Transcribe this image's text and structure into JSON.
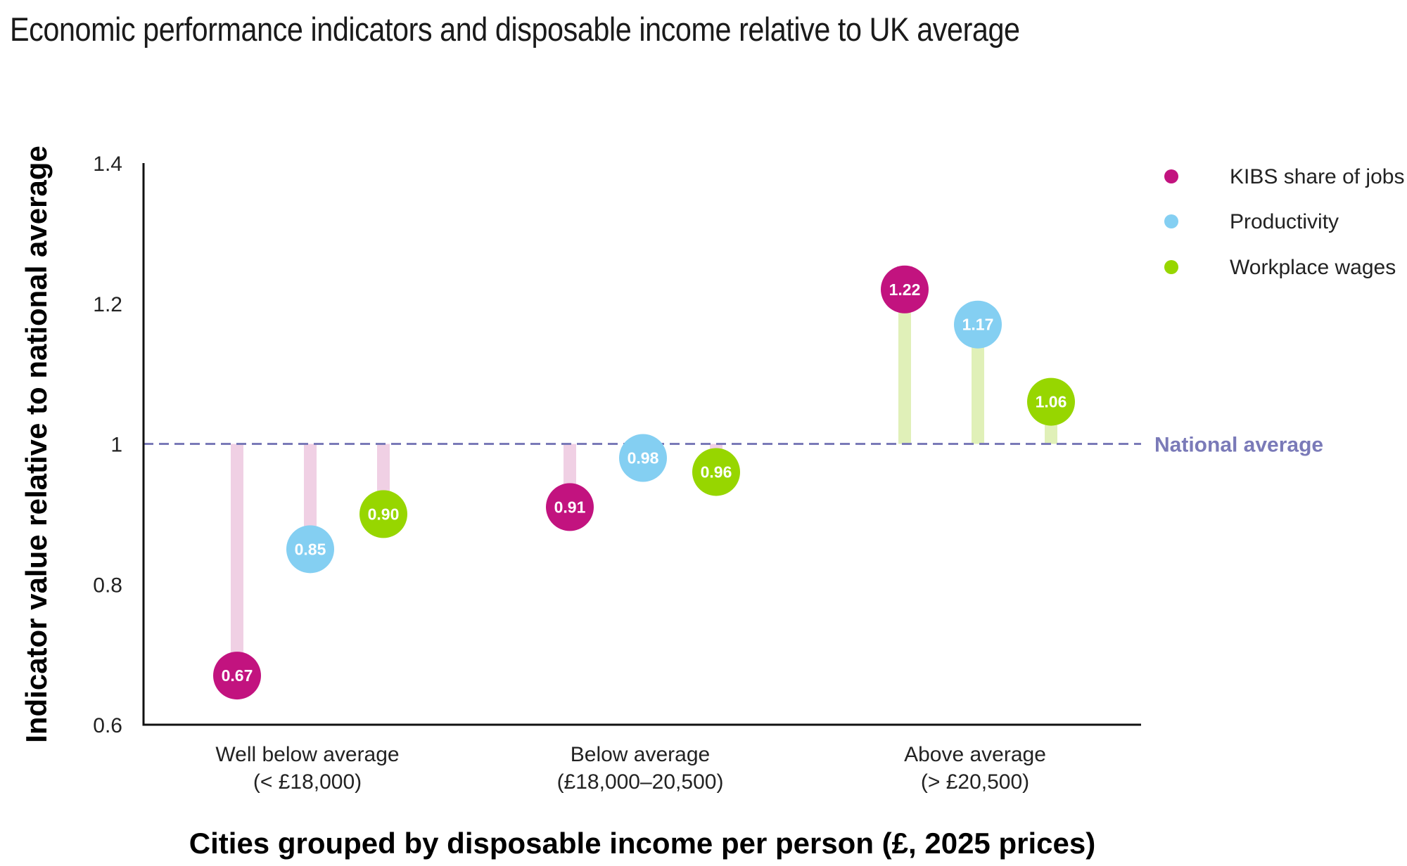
{
  "title": "Economic performance indicators and disposable income relative to UK average",
  "chart_data": {
    "type": "lollipop",
    "title": "Economic performance indicators and disposable income relative to UK average",
    "xlabel": "Cities grouped by disposable income per person (£, 2025 prices)",
    "ylabel": "Indicator value relative to national average",
    "ylim": [
      0.6,
      1.4
    ],
    "yticks": [
      0.6,
      0.8,
      1,
      1.2,
      1.4
    ],
    "ytick_labels": [
      "0.6",
      "0.8",
      "1",
      "1.2",
      "1.4"
    ],
    "baseline": 1,
    "reference_line": {
      "value": 1,
      "label": "National average",
      "style": "dashed",
      "color": "#7a7ab8"
    },
    "categories": [
      {
        "line1": "Well below average",
        "line2": "(< £18,000)"
      },
      {
        "line1": "Below average",
        "line2": "(£18,000–20,500)"
      },
      {
        "line1": "Above average",
        "line2": "(> £20,500)"
      }
    ],
    "series": [
      {
        "name": "KIBS share of jobs",
        "color": "#c2137f",
        "values": [
          0.67,
          0.91,
          1.22
        ],
        "labels": [
          "0.67",
          "0.91",
          "1.22"
        ]
      },
      {
        "name": "Productivity",
        "color": "#84cff2",
        "values": [
          0.85,
          0.98,
          1.17
        ],
        "labels": [
          "0.85",
          "0.98",
          "1.17"
        ]
      },
      {
        "name": "Workplace wages",
        "color": "#97d600",
        "values": [
          0.9,
          0.96,
          1.06
        ],
        "labels": [
          "0.90",
          "0.96",
          "1.06"
        ]
      }
    ],
    "stem_colors": {
      "below": "#f0d0e4",
      "above": "#e0f0b8"
    },
    "legend_position": "top-right",
    "grid": false
  }
}
